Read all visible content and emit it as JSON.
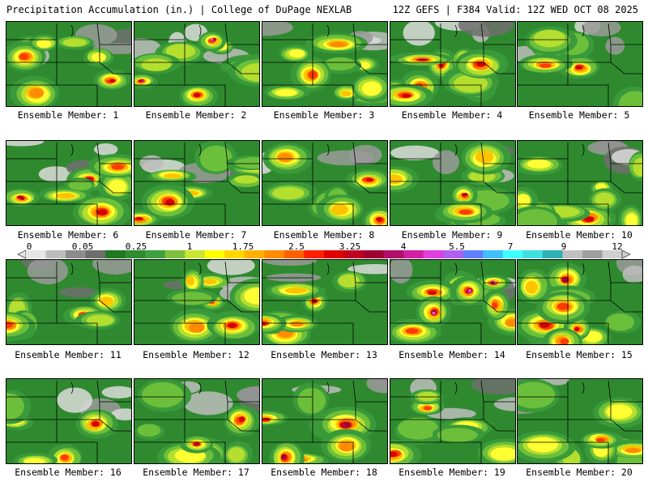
{
  "header": {
    "left": "Precipitation Accumulation (in.) | College of DuPage NEXLAB",
    "right": "12Z GEFS | F384 Valid: 12Z WED OCT 08 2025"
  },
  "members": [
    {
      "label": "Ensemble Member: 1"
    },
    {
      "label": "Ensemble Member: 2"
    },
    {
      "label": "Ensemble Member: 3"
    },
    {
      "label": "Ensemble Member: 4"
    },
    {
      "label": "Ensemble Member: 5"
    },
    {
      "label": "Ensemble Member: 6"
    },
    {
      "label": "Ensemble Member: 7"
    },
    {
      "label": "Ensemble Member: 8"
    },
    {
      "label": "Ensemble Member: 9"
    },
    {
      "label": "Ensemble Member: 10"
    },
    {
      "label": "Ensemble Member: 11"
    },
    {
      "label": "Ensemble Member: 12"
    },
    {
      "label": "Ensemble Member: 13"
    },
    {
      "label": "Ensemble Member: 14"
    },
    {
      "label": "Ensemble Member: 15"
    },
    {
      "label": "Ensemble Member: 16"
    },
    {
      "label": "Ensemble Member: 17"
    },
    {
      "label": "Ensemble Member: 18"
    },
    {
      "label": "Ensemble Member: 19"
    },
    {
      "label": "Ensemble Member: 20"
    }
  ],
  "colorbar": {
    "ticks": [
      "0",
      "0.05",
      "0.25",
      "1",
      "1.75",
      "2.5",
      "3.25",
      "4",
      "5.5",
      "7",
      "9",
      "12"
    ],
    "colors": [
      "#e6e6e6",
      "#bdbdbd",
      "#8c8c8c",
      "#6e6e6e",
      "#1f7a1f",
      "#2e8b2e",
      "#3fa03f",
      "#7fc03f",
      "#c8e632",
      "#ffff00",
      "#ffd700",
      "#ffb000",
      "#ff8c00",
      "#ff6000",
      "#ff2000",
      "#e00000",
      "#c00020",
      "#a00030",
      "#b0106a",
      "#d020a0",
      "#e040e0",
      "#b060f0",
      "#6080ff",
      "#40c0ff",
      "#40ffff",
      "#40e0e0",
      "#30b0b0",
      "#c0c0c0",
      "#a0a0a0",
      "#d0d0d0"
    ]
  }
}
